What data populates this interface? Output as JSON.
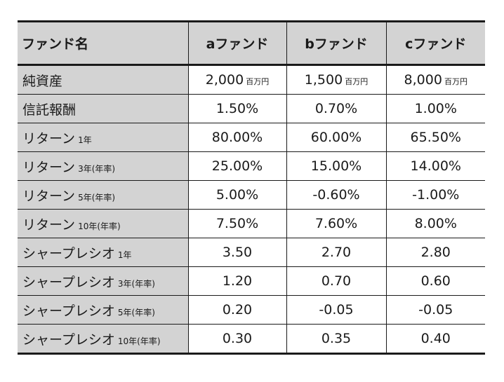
{
  "table": {
    "header": {
      "label": "ファンド名",
      "funds": [
        "aファンド",
        "bファンド",
        "cファンド"
      ]
    },
    "rows": [
      {
        "label": "純資産",
        "sub": "",
        "values": [
          "2,000",
          "1,500",
          "8,000"
        ],
        "unit": "百万円"
      },
      {
        "label": "信託報酬",
        "sub": "",
        "values": [
          "1.50%",
          "0.70%",
          "1.00%"
        ],
        "unit": ""
      },
      {
        "label": "リターン",
        "sub": "1年",
        "values": [
          "80.00%",
          "60.00%",
          "65.50%"
        ],
        "unit": ""
      },
      {
        "label": "リターン",
        "sub": "3年(年率)",
        "values": [
          "25.00%",
          "15.00%",
          "14.00%"
        ],
        "unit": ""
      },
      {
        "label": "リターン",
        "sub": "5年(年率)",
        "values": [
          "5.00%",
          "-0.60%",
          "-1.00%"
        ],
        "unit": ""
      },
      {
        "label": "リターン",
        "sub": "10年(年率)",
        "values": [
          "7.50%",
          "7.60%",
          "8.00%"
        ],
        "unit": ""
      },
      {
        "label": "シャープレシオ",
        "sub": "1年",
        "values": [
          "3.50",
          "2.70",
          "2.80"
        ],
        "unit": ""
      },
      {
        "label": "シャープレシオ",
        "sub": "3年(年率)",
        "values": [
          "1.20",
          "0.70",
          "0.60"
        ],
        "unit": ""
      },
      {
        "label": "シャープレシオ",
        "sub": "5年(年率)",
        "values": [
          "0.20",
          "-0.05",
          "-0.05"
        ],
        "unit": ""
      },
      {
        "label": "シャープレシオ",
        "sub": "10年(年率)",
        "values": [
          "0.30",
          "0.35",
          "0.40"
        ],
        "unit": ""
      }
    ]
  }
}
